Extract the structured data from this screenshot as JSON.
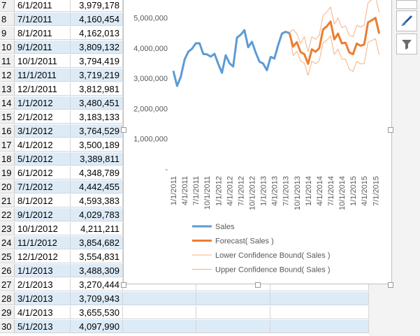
{
  "rows": [
    {
      "num": "7",
      "date": "6/1/2011",
      "value": "3,979,178"
    },
    {
      "num": "8",
      "date": "7/1/2011",
      "value": "4,160,454"
    },
    {
      "num": "9",
      "date": "8/1/2011",
      "value": "4,162,013"
    },
    {
      "num": "10",
      "date": "9/1/2011",
      "value": "3,809,132"
    },
    {
      "num": "11",
      "date": "10/1/2011",
      "value": "3,794,419"
    },
    {
      "num": "12",
      "date": "11/1/2011",
      "value": "3,719,219"
    },
    {
      "num": "13",
      "date": "12/1/2011",
      "value": "3,812,981"
    },
    {
      "num": "14",
      "date": "1/1/2012",
      "value": "3,480,451"
    },
    {
      "num": "15",
      "date": "2/1/2012",
      "value": "3,183,133"
    },
    {
      "num": "16",
      "date": "3/1/2012",
      "value": "3,764,529"
    },
    {
      "num": "17",
      "date": "4/1/2012",
      "value": "3,500,189"
    },
    {
      "num": "18",
      "date": "5/1/2012",
      "value": "3,389,811"
    },
    {
      "num": "19",
      "date": "6/1/2012",
      "value": "4,348,789"
    },
    {
      "num": "20",
      "date": "7/1/2012",
      "value": "4,442,455"
    },
    {
      "num": "21",
      "date": "8/1/2012",
      "value": "4,593,383"
    },
    {
      "num": "22",
      "date": "9/1/2012",
      "value": "4,029,783"
    },
    {
      "num": "23",
      "date": "10/1/2012",
      "value": "4,211,211"
    },
    {
      "num": "24",
      "date": "11/1/2012",
      "value": "3,854,682"
    },
    {
      "num": "25",
      "date": "12/1/2012",
      "value": "3,554,831"
    },
    {
      "num": "26",
      "date": "1/1/2013",
      "value": "3,488,309"
    },
    {
      "num": "27",
      "date": "2/1/2013",
      "value": "3,270,444"
    },
    {
      "num": "28",
      "date": "3/1/2013",
      "value": "3,709,943"
    },
    {
      "num": "29",
      "date": "4/1/2013",
      "value": "3,655,530"
    },
    {
      "num": "30",
      "date": "5/1/2013",
      "value": "4,097,990"
    }
  ],
  "side_buttons": [
    "chart-styles-brush-icon",
    "chart-filter-icon"
  ],
  "chart_data": {
    "type": "line",
    "x_tick_labels": [
      "1/1/2011",
      "4/1/2011",
      "7/1/2011",
      "10/1/2011",
      "1/1/2012",
      "4/1/2012",
      "7/1/2012",
      "10/1/2012",
      "1/1/2013",
      "4/1/2013",
      "7/1/2013",
      "10/1/2013",
      "1/1/2014",
      "4/1/2014",
      "7/1/2014",
      "10/1/2014",
      "1/1/2015",
      "4/1/2015",
      "7/1/2015"
    ],
    "y_tick_labels": [
      "-",
      "1,000,000",
      "2,000,000",
      "3,000,000",
      "4,000,000",
      "5,000,000"
    ],
    "ylim": [
      0,
      5500000
    ],
    "x_start": "1/1/2011",
    "x_end": "9/1/2015",
    "legend_position": "bottom",
    "colors": {
      "sales": "#5b9bd5",
      "forecast": "#ed7d31",
      "bound": "#f4b183"
    },
    "series": [
      {
        "name": "Sales",
        "x_start": "1/1/2011",
        "values": [
          3250000,
          2750000,
          3050000,
          3620000,
          3880000,
          3979178,
          4160454,
          4162013,
          3809132,
          3794419,
          3719219,
          3812981,
          3480451,
          3183133,
          3764529,
          3500189,
          3389811,
          4348789,
          4442455,
          4593383,
          4029783,
          4211211,
          3854682,
          3554831,
          3488309,
          3270444,
          3709943,
          3655530,
          4097990,
          4480000,
          4540000,
          4500000
        ]
      },
      {
        "name": "Forecast( Sales )",
        "x_start": "8/1/2013",
        "values": [
          4500000,
          4050000,
          4200000,
          3870000,
          3800000,
          3480000,
          3960000,
          3880000,
          4000000,
          4620000,
          4720000,
          4880000,
          4290000,
          4480000,
          4160000,
          4180000,
          3860000,
          3800000,
          4150000,
          4080000,
          4120000,
          4850000,
          4920000,
          5000000,
          4480000
        ]
      },
      {
        "name": "Lower Confidence Bound( Sales )",
        "x_start": "8/1/2013",
        "values": [
          4500000,
          3750000,
          3900000,
          3580000,
          3500000,
          3100000,
          3570000,
          3480000,
          3580000,
          4180000,
          4260000,
          4400000,
          3790000,
          3970000,
          3640000,
          3640000,
          3300000,
          3230000,
          3560000,
          3480000,
          3490000,
          4200000,
          4250000,
          4310000,
          3780000
        ]
      },
      {
        "name": "Upper Confidence Bound( Sales )",
        "x_start": "8/1/2013",
        "values": [
          4500000,
          4620000,
          4470000,
          4160000,
          4380000,
          3880000,
          4380000,
          4290000,
          4430000,
          5080000,
          5200000,
          5360000,
          4790000,
          5000000,
          4680000,
          4730000,
          4420000,
          4380000,
          4750000,
          4700000,
          4760000,
          5500000,
          5600000,
          5690000,
          5180000
        ]
      }
    ]
  }
}
